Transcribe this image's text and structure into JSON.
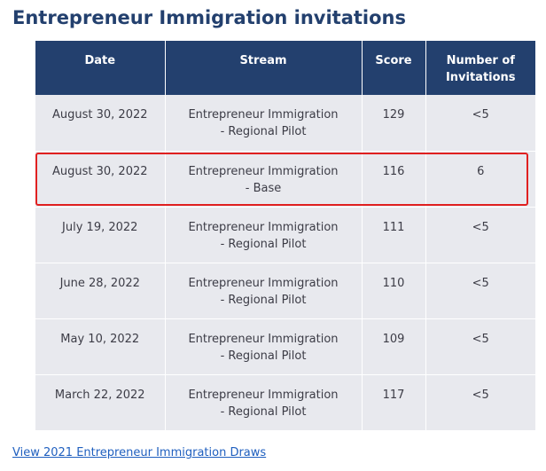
{
  "page": {
    "title": "Entrepreneur Immigration invitations"
  },
  "table": {
    "headers": {
      "date": "Date",
      "stream": "Stream",
      "score": "Score",
      "invitations_line1": "Number of",
      "invitations_line2": "Invitations"
    },
    "rows": [
      {
        "date": "August 30, 2022",
        "stream_line1": "Entrepreneur Immigration",
        "stream_line2": "- Regional Pilot",
        "score": "129",
        "invitations": "<5"
      },
      {
        "date": "August 30, 2022",
        "stream_line1": "Entrepreneur Immigration",
        "stream_line2": "- Base",
        "score": "116",
        "invitations": "6"
      },
      {
        "date": "July 19, 2022",
        "stream_line1": "Entrepreneur Immigration",
        "stream_line2": "- Regional Pilot",
        "score": "111",
        "invitations": "<5"
      },
      {
        "date": "June 28, 2022",
        "stream_line1": "Entrepreneur Immigration",
        "stream_line2": "- Regional Pilot",
        "score": "110",
        "invitations": "<5"
      },
      {
        "date": "May 10, 2022",
        "stream_line1": "Entrepreneur Immigration",
        "stream_line2": "- Regional Pilot",
        "score": "109",
        "invitations": "<5"
      },
      {
        "date": "March 22, 2022",
        "stream_line1": "Entrepreneur Immigration",
        "stream_line2": "- Regional Pilot",
        "score": "117",
        "invitations": "<5"
      }
    ]
  },
  "highlight": {
    "row_index": 1,
    "color": "#e02020"
  },
  "footer": {
    "link_text": "View 2021 Entrepreneur Immigration Draws"
  },
  "colors": {
    "header_bg": "#23406e",
    "row_bg": "#e8e9ee",
    "link": "#1f5fbf"
  }
}
